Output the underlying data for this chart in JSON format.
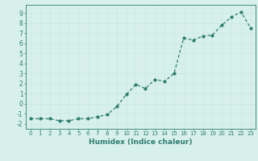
{
  "x": [
    0,
    1,
    2,
    3,
    4,
    5,
    6,
    7,
    8,
    9,
    10,
    11,
    12,
    13,
    14,
    15,
    16,
    17,
    18,
    19,
    20,
    21,
    22,
    23
  ],
  "y": [
    -1.5,
    -1.5,
    -1.5,
    -1.7,
    -1.7,
    -1.5,
    -1.5,
    -1.3,
    -1.1,
    -0.3,
    0.9,
    1.9,
    1.5,
    2.4,
    2.2,
    3.0,
    6.5,
    6.3,
    6.7,
    6.8,
    7.8,
    8.6,
    9.1,
    7.5
  ],
  "line_color": "#2d7d6e",
  "marker": "o",
  "marker_size": 2.0,
  "linewidth": 0.9,
  "xlabel": "Humidex (Indice chaleur)",
  "xlabel_fontsize": 6.5,
  "xlabel_fontweight": "bold",
  "xlabel_color": "#2d7d6e",
  "ylim": [
    -2.5,
    9.8
  ],
  "xlim": [
    -0.5,
    23.5
  ],
  "yticks": [
    -2,
    -1,
    0,
    1,
    2,
    3,
    4,
    5,
    6,
    7,
    8,
    9
  ],
  "xticks": [
    0,
    1,
    2,
    3,
    4,
    5,
    6,
    7,
    8,
    9,
    10,
    11,
    12,
    13,
    14,
    15,
    16,
    17,
    18,
    19,
    20,
    21,
    22,
    23
  ],
  "grid_color": "#c8e8e0",
  "background_color": "#d8f0ec",
  "tick_color": "#2d7d6e",
  "tick_fontsize": 5.0,
  "spine_color": "#2d7d6e"
}
